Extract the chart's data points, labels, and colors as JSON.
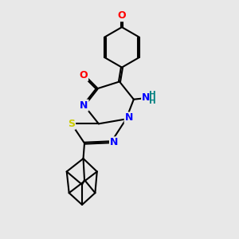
{
  "bg_color": "#e8e8e8",
  "bond_color": "#000000",
  "bond_width": 1.5,
  "atom_colors": {
    "O": "#ff0000",
    "N": "#0000ff",
    "S": "#cccc00",
    "H": "#008080"
  },
  "font_size_atom": 9,
  "font_size_h": 7.5,
  "dbo": 0.07
}
